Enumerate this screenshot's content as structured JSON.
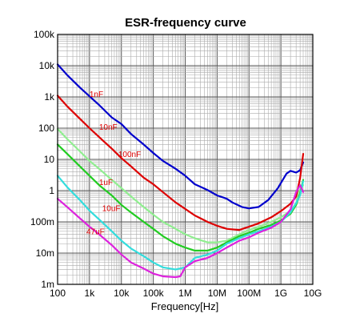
{
  "chart_data": {
    "type": "line",
    "title": "ESR-frequency curve",
    "xlabel": "Frequency[Hz]",
    "ylabel": "",
    "x_scale": "log",
    "y_scale": "log",
    "xlim": [
      100,
      10000000000
    ],
    "ylim": [
      0.001,
      100000
    ],
    "grid": true,
    "legend": "inline labels",
    "x_ticks": [
      {
        "value": 100,
        "label": "100"
      },
      {
        "value": 1000,
        "label": "1k"
      },
      {
        "value": 10000,
        "label": "10k"
      },
      {
        "value": 100000,
        "label": "100k"
      },
      {
        "value": 1000000,
        "label": "1M"
      },
      {
        "value": 10000000,
        "label": "10M"
      },
      {
        "value": 100000000,
        "label": "100M"
      },
      {
        "value": 1000000000,
        "label": "1G"
      },
      {
        "value": 10000000000,
        "label": "10G"
      }
    ],
    "y_ticks": [
      {
        "value": 0.001,
        "label": "1m"
      },
      {
        "value": 0.01,
        "label": "10m"
      },
      {
        "value": 0.1,
        "label": "100m"
      },
      {
        "value": 1,
        "label": "1"
      },
      {
        "value": 10,
        "label": "10"
      },
      {
        "value": 100,
        "label": "100"
      },
      {
        "value": 1000,
        "label": "1k"
      },
      {
        "value": 10000,
        "label": "10k"
      },
      {
        "value": 100000,
        "label": "100k"
      }
    ],
    "series": [
      {
        "name": "1nF",
        "color": "#0000cc",
        "label_at": [
          1000,
          1000
        ],
        "points": [
          [
            100,
            11000
          ],
          [
            200,
            5000
          ],
          [
            500,
            2000
          ],
          [
            1000,
            1050
          ],
          [
            2000,
            550
          ],
          [
            5000,
            220
          ],
          [
            10000,
            135
          ],
          [
            20000,
            65
          ],
          [
            50000,
            30
          ],
          [
            100000,
            16
          ],
          [
            200000,
            9
          ],
          [
            500000,
            5
          ],
          [
            1000000,
            3
          ],
          [
            2000000,
            1.6
          ],
          [
            5000000,
            1.05
          ],
          [
            10000000,
            0.7
          ],
          [
            20000000,
            0.55
          ],
          [
            30000000,
            0.42
          ],
          [
            60000000,
            0.3
          ],
          [
            100000000,
            0.27
          ],
          [
            200000000,
            0.3
          ],
          [
            400000000,
            0.5
          ],
          [
            800000000,
            1.2
          ],
          [
            1500000000,
            3.5
          ],
          [
            2000000000,
            4.3
          ],
          [
            3000000000,
            3.8
          ],
          [
            4000000000,
            4.5
          ],
          [
            5000000000,
            8
          ]
        ]
      },
      {
        "name": "10nF",
        "color": "#dd0000",
        "label_at": [
          2000,
          90
        ],
        "points": [
          [
            100,
            1100
          ],
          [
            200,
            500
          ],
          [
            500,
            200
          ],
          [
            1000,
            100
          ],
          [
            2000,
            52
          ],
          [
            5000,
            22
          ],
          [
            10000,
            11
          ],
          [
            20000,
            6
          ],
          [
            50000,
            2.6
          ],
          [
            100000,
            1.6
          ],
          [
            200000,
            0.9
          ],
          [
            500000,
            0.42
          ],
          [
            1000000,
            0.26
          ],
          [
            2000000,
            0.16
          ],
          [
            5000000,
            0.1
          ],
          [
            10000000,
            0.075
          ],
          [
            20000000,
            0.06
          ],
          [
            50000000,
            0.055
          ],
          [
            100000000,
            0.07
          ],
          [
            200000000,
            0.09
          ],
          [
            500000000,
            0.14
          ],
          [
            1000000000,
            0.22
          ],
          [
            2000000000,
            0.38
          ],
          [
            3000000000,
            0.65
          ],
          [
            4000000000,
            2.5
          ],
          [
            5000000000,
            15
          ]
        ]
      },
      {
        "name": "100nF",
        "color": "#90ee90",
        "label_at": [
          8000,
          12
        ],
        "points": [
          [
            100,
            95
          ],
          [
            200,
            45
          ],
          [
            500,
            18
          ],
          [
            1000,
            9
          ],
          [
            2000,
            5
          ],
          [
            5000,
            2.2
          ],
          [
            10000,
            1.2
          ],
          [
            20000,
            0.65
          ],
          [
            50000,
            0.3
          ],
          [
            100000,
            0.17
          ],
          [
            200000,
            0.1
          ],
          [
            500000,
            0.06
          ],
          [
            1000000,
            0.04
          ],
          [
            2000000,
            0.03
          ],
          [
            5000000,
            0.022
          ],
          [
            10000000,
            0.022
          ],
          [
            20000000,
            0.025
          ],
          [
            50000000,
            0.04
          ],
          [
            100000000,
            0.055
          ],
          [
            200000000,
            0.07
          ],
          [
            500000000,
            0.1
          ],
          [
            1000000000,
            0.14
          ],
          [
            2000000000,
            0.22
          ],
          [
            3000000000,
            0.4
          ],
          [
            4000000000,
            1.1
          ],
          [
            5000000000,
            1.5
          ]
        ]
      },
      {
        "name": "1uF",
        "color": "#22cc22",
        "label_at": [
          2000,
          1.5
        ],
        "points": [
          [
            100,
            30
          ],
          [
            200,
            15
          ],
          [
            500,
            6
          ],
          [
            1000,
            3
          ],
          [
            2000,
            1.5
          ],
          [
            5000,
            0.7
          ],
          [
            10000,
            0.35
          ],
          [
            20000,
            0.2
          ],
          [
            50000,
            0.1
          ],
          [
            100000,
            0.06
          ],
          [
            200000,
            0.035
          ],
          [
            500000,
            0.02
          ],
          [
            1000000,
            0.015
          ],
          [
            2000000,
            0.012
          ],
          [
            5000000,
            0.012
          ],
          [
            10000000,
            0.015
          ],
          [
            20000000,
            0.022
          ],
          [
            50000000,
            0.035
          ],
          [
            100000000,
            0.045
          ],
          [
            200000000,
            0.06
          ],
          [
            500000000,
            0.08
          ],
          [
            1000000000,
            0.11
          ],
          [
            2000000000,
            0.18
          ],
          [
            3000000000,
            0.35
          ],
          [
            4000000000,
            0.8
          ],
          [
            5000000000,
            2.2
          ]
        ]
      },
      {
        "name": "10uF",
        "color": "#33dddd",
        "label_at": [
          2500,
          0.22
        ],
        "points": [
          [
            100,
            3
          ],
          [
            200,
            1.3
          ],
          [
            500,
            0.5
          ],
          [
            1000,
            0.23
          ],
          [
            2000,
            0.12
          ],
          [
            5000,
            0.05
          ],
          [
            10000,
            0.025
          ],
          [
            20000,
            0.014
          ],
          [
            50000,
            0.008
          ],
          [
            100000,
            0.005
          ],
          [
            200000,
            0.0035
          ],
          [
            500000,
            0.003
          ],
          [
            1000000,
            0.0035
          ],
          [
            2000000,
            0.007
          ],
          [
            5000000,
            0.009
          ],
          [
            10000000,
            0.012
          ],
          [
            20000000,
            0.02
          ],
          [
            50000000,
            0.03
          ],
          [
            100000000,
            0.04
          ],
          [
            200000000,
            0.05
          ],
          [
            500000000,
            0.07
          ],
          [
            1000000000,
            0.1
          ],
          [
            2000000000,
            0.2
          ],
          [
            3000000000,
            0.4
          ],
          [
            4000000000,
            0.7
          ],
          [
            5000000000,
            2
          ]
        ]
      },
      {
        "name": "47uF",
        "color": "#dd22dd",
        "label_at": [
          800,
          0.04
        ],
        "points": [
          [
            100,
            0.55
          ],
          [
            200,
            0.3
          ],
          [
            500,
            0.13
          ],
          [
            1000,
            0.07
          ],
          [
            2000,
            0.04
          ],
          [
            5000,
            0.018
          ],
          [
            10000,
            0.009
          ],
          [
            20000,
            0.005
          ],
          [
            50000,
            0.0032
          ],
          [
            100000,
            0.0022
          ],
          [
            200000,
            0.0018
          ],
          [
            500000,
            0.0017
          ],
          [
            700000,
            0.0018
          ],
          [
            1000000,
            0.0035
          ],
          [
            2000000,
            0.0055
          ],
          [
            5000000,
            0.007
          ],
          [
            10000000,
            0.01
          ],
          [
            20000000,
            0.015
          ],
          [
            50000000,
            0.025
          ],
          [
            100000000,
            0.032
          ],
          [
            200000000,
            0.045
          ],
          [
            500000000,
            0.065
          ],
          [
            1000000000,
            0.1
          ],
          [
            2000000000,
            0.25
          ],
          [
            3000000000,
            0.9
          ],
          [
            4000000000,
            1.5
          ],
          [
            5000000000,
            0.9
          ]
        ]
      }
    ]
  }
}
